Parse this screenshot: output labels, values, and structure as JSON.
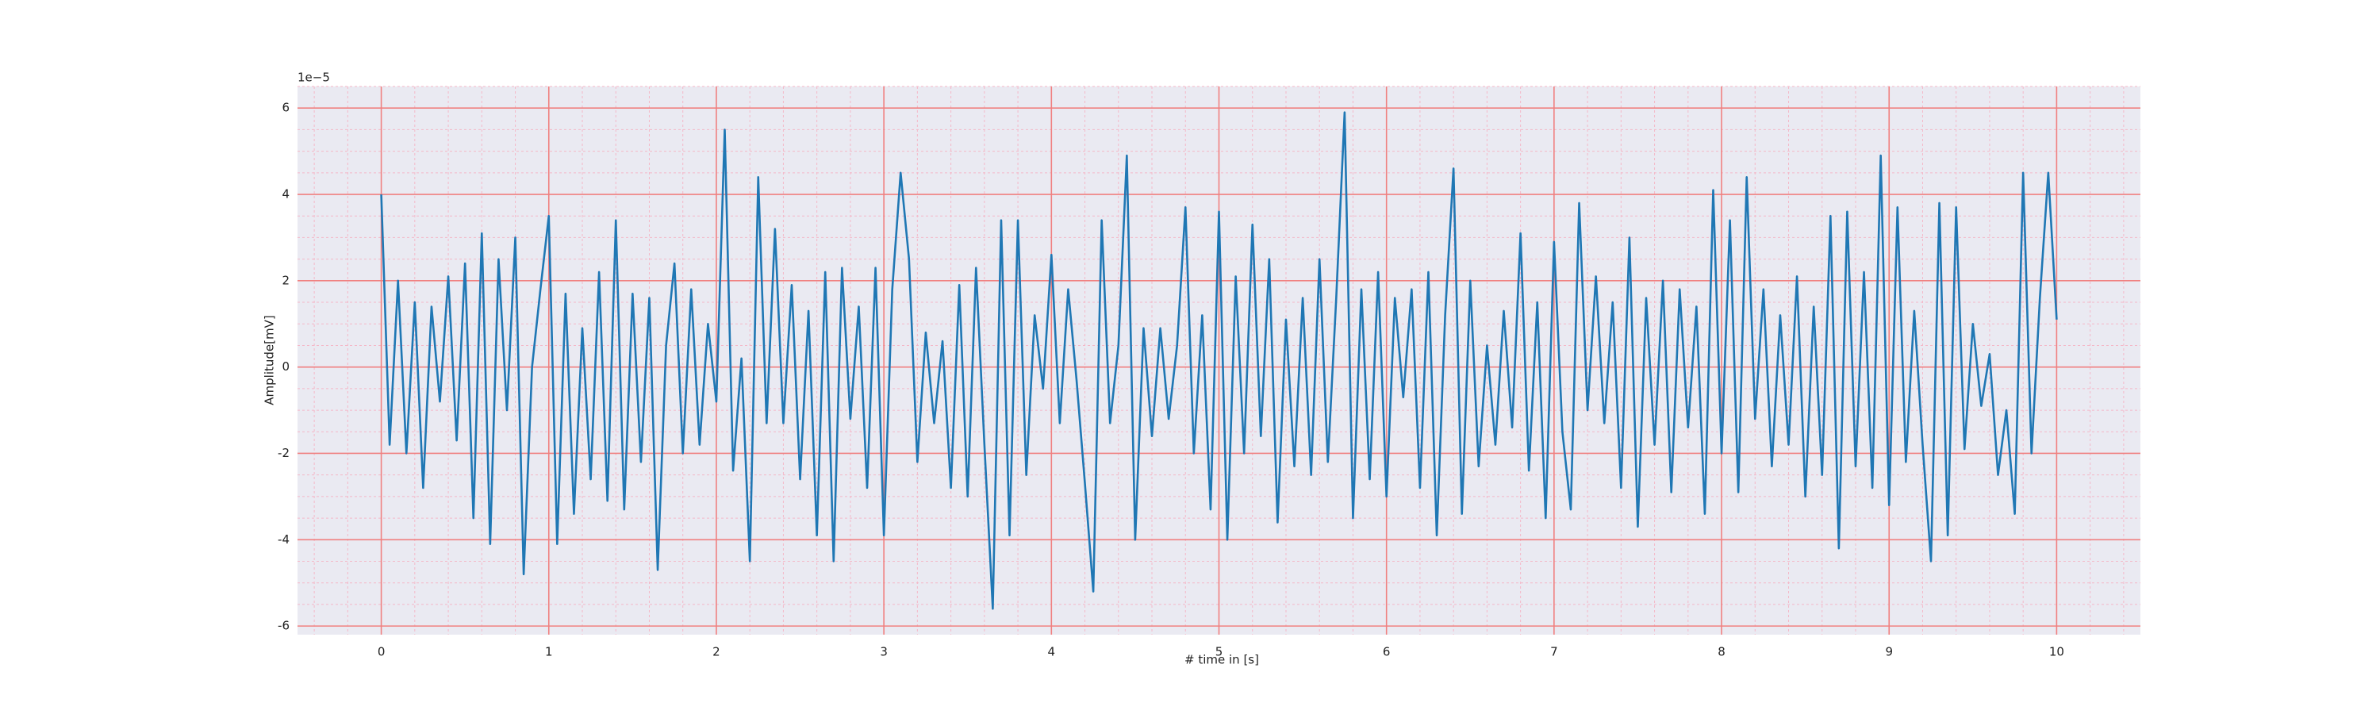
{
  "chart_data": {
    "type": "line",
    "xlabel": "# time in [s]",
    "ylabel": "Amplitude[mV]",
    "y_offset_label": "1e−5",
    "xlim": [
      -0.5,
      10.5
    ],
    "ylim": [
      -6.2,
      6.5
    ],
    "xticks": [
      0,
      1,
      2,
      3,
      4,
      5,
      6,
      7,
      8,
      9,
      10
    ],
    "yticks": [
      -6,
      -4,
      -2,
      0,
      2,
      4,
      6
    ],
    "xminorticks": [
      -0.4,
      -0.2,
      0.2,
      0.4,
      0.6,
      0.8,
      1.2,
      1.4,
      1.6,
      1.8,
      2.2,
      2.4,
      2.6,
      2.8,
      3.2,
      3.4,
      3.6,
      3.8,
      4.2,
      4.4,
      4.6,
      4.8,
      5.2,
      5.4,
      5.6,
      5.8,
      6.2,
      6.4,
      6.6,
      6.8,
      7.2,
      7.4,
      7.6,
      7.8,
      8.2,
      8.4,
      8.6,
      8.8,
      9.2,
      9.4,
      9.6,
      9.8,
      10.2,
      10.4
    ],
    "yminorticks": [
      -5.5,
      -5,
      -4.5,
      -3.5,
      -3,
      -2.5,
      -1.5,
      -1,
      -0.5,
      0.5,
      1,
      1.5,
      2.5,
      3,
      3.5,
      4.5,
      5,
      5.5,
      6.5
    ],
    "grid": true,
    "grid_color": "#f08080",
    "minor_grid_color": "#f4b8c8",
    "background": "#eaeaf2",
    "series": [
      {
        "color": "#1f77b4",
        "x": [
          0,
          0.05,
          0.1,
          0.15,
          0.2,
          0.25,
          0.3,
          0.35,
          0.4,
          0.45,
          0.5,
          0.55,
          0.6,
          0.65,
          0.7,
          0.75,
          0.8,
          0.85,
          0.9,
          0.95,
          1,
          1.05,
          1.1,
          1.15,
          1.2,
          1.25,
          1.3,
          1.35,
          1.4,
          1.45,
          1.5,
          1.55,
          1.6,
          1.65,
          1.7,
          1.75,
          1.8,
          1.85,
          1.9,
          1.95,
          2,
          2.05,
          2.1,
          2.15,
          2.2,
          2.25,
          2.3,
          2.35,
          2.4,
          2.45,
          2.5,
          2.55,
          2.6,
          2.65,
          2.7,
          2.75,
          2.8,
          2.85,
          2.9,
          2.95,
          3,
          3.05,
          3.1,
          3.15,
          3.2,
          3.25,
          3.3,
          3.35,
          3.4,
          3.45,
          3.5,
          3.55,
          3.6,
          3.65,
          3.7,
          3.75,
          3.8,
          3.85,
          3.9,
          3.95,
          4,
          4.05,
          4.1,
          4.15,
          4.2,
          4.25,
          4.3,
          4.35,
          4.4,
          4.45,
          4.5,
          4.55,
          4.6,
          4.65,
          4.7,
          4.75,
          4.8,
          4.85,
          4.9,
          4.95,
          5,
          5.05,
          5.1,
          5.15,
          5.2,
          5.25,
          5.3,
          5.35,
          5.4,
          5.45,
          5.5,
          5.55,
          5.6,
          5.65,
          5.7,
          5.75,
          5.8,
          5.85,
          5.9,
          5.95,
          6,
          6.05,
          6.1,
          6.15,
          6.2,
          6.25,
          6.3,
          6.35,
          6.4,
          6.45,
          6.5,
          6.55,
          6.6,
          6.65,
          6.7,
          6.75,
          6.8,
          6.85,
          6.9,
          6.95,
          7,
          7.05,
          7.1,
          7.15,
          7.2,
          7.25,
          7.3,
          7.35,
          7.4,
          7.45,
          7.5,
          7.55,
          7.6,
          7.65,
          7.7,
          7.75,
          7.8,
          7.85,
          7.9,
          7.95,
          8,
          8.05,
          8.1,
          8.15,
          8.2,
          8.25,
          8.3,
          8.35,
          8.4,
          8.45,
          8.5,
          8.55,
          8.6,
          8.65,
          8.7,
          8.75,
          8.8,
          8.85,
          8.9,
          8.95,
          9,
          9.05,
          9.1,
          9.15,
          9.2,
          9.25,
          9.3,
          9.35,
          9.4,
          9.45,
          9.5,
          9.55,
          9.6,
          9.65,
          9.7,
          9.75,
          9.8,
          9.85,
          9.9,
          9.95,
          10
        ],
        "values": [
          4.0,
          -1.8,
          2.0,
          -2.0,
          1.5,
          -2.8,
          1.4,
          -0.8,
          2.1,
          -1.7,
          2.4,
          -3.5,
          3.1,
          -4.1,
          2.5,
          -1.0,
          3.0,
          -4.8,
          0.0,
          1.8,
          3.5,
          -4.1,
          1.7,
          -3.4,
          0.9,
          -2.6,
          2.2,
          -3.1,
          3.4,
          -3.3,
          1.7,
          -2.2,
          1.6,
          -4.7,
          0.5,
          2.4,
          -2.0,
          1.8,
          -1.8,
          1.0,
          -0.8,
          5.5,
          -2.4,
          0.2,
          -4.5,
          4.4,
          -1.3,
          3.2,
          -1.3,
          1.9,
          -2.6,
          1.3,
          -3.9,
          2.2,
          -4.5,
          2.3,
          -1.2,
          1.4,
          -2.8,
          2.3,
          -3.9,
          1.8,
          4.5,
          2.5,
          -2.2,
          0.8,
          -1.3,
          0.6,
          -2.8,
          1.9,
          -3.0,
          2.3,
          -1.8,
          -5.6,
          3.4,
          -3.9,
          3.4,
          -2.5,
          1.2,
          -0.5,
          2.6,
          -1.3,
          1.8,
          -0.3,
          -2.7,
          -5.2,
          3.4,
          -1.3,
          0.5,
          4.9,
          -4.0,
          0.9,
          -1.6,
          0.9,
          -1.2,
          0.5,
          3.7,
          -2.0,
          1.2,
          -3.3,
          3.6,
          -4.0,
          2.1,
          -2.0,
          3.3,
          -1.6,
          2.5,
          -3.6,
          1.1,
          -2.3,
          1.6,
          -2.5,
          2.5,
          -2.2,
          1.6,
          5.9,
          -3.5,
          1.8,
          -2.6,
          2.2,
          -3.0,
          1.6,
          -0.7,
          1.8,
          -2.8,
          2.2,
          -3.9,
          1.2,
          4.6,
          -3.4,
          2.0,
          -2.3,
          0.5,
          -1.8,
          1.3,
          -1.4,
          3.1,
          -2.4,
          1.5,
          -3.5,
          2.9,
          -1.5,
          -3.3,
          3.8,
          -1.0,
          2.1,
          -1.3,
          1.5,
          -2.8,
          3.0,
          -3.7,
          1.6,
          -1.8,
          2.0,
          -2.9,
          1.8,
          -1.4,
          1.4,
          -3.4,
          4.1,
          -2.0,
          3.4,
          -2.9,
          4.4,
          -1.2,
          1.8,
          -2.3,
          1.2,
          -1.8,
          2.1,
          -3.0,
          1.4,
          -2.5,
          3.5,
          -4.2,
          3.6,
          -2.3,
          2.2,
          -2.8,
          4.9,
          -3.2,
          3.7,
          -2.2,
          1.3,
          -1.8,
          -4.5,
          3.8,
          -3.9,
          3.7,
          -1.9,
          1.0,
          -0.9,
          0.3,
          -2.5,
          -1.0,
          -3.4,
          4.5,
          -2.0,
          1.6,
          4.5,
          1.1
        ]
      }
    ]
  }
}
